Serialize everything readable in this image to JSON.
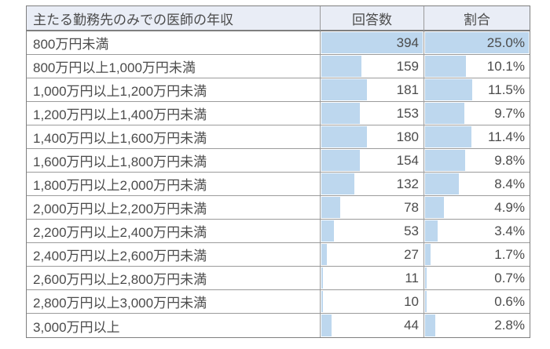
{
  "page": {
    "background": "#FFFFFF"
  },
  "table": {
    "headers": {
      "category": "主たる勤務先のみでの医師の年収",
      "count": "回答数",
      "percent": "割合"
    },
    "rows": [
      {
        "category": "800万円未満",
        "count": "394",
        "percent": "25.0%"
      },
      {
        "category": "800万円以上1,000万円未満",
        "count": "159",
        "percent": "10.1%"
      },
      {
        "category": "1,000万円以上1,200万円未満",
        "count": "181",
        "percent": "11.5%"
      },
      {
        "category": "1,200万円以上1,400万円未満",
        "count": "153",
        "percent": "9.7%"
      },
      {
        "category": "1,400万円以上1,600万円未満",
        "count": "180",
        "percent": "11.4%"
      },
      {
        "category": "1,600万円以上1,800万円未満",
        "count": "154",
        "percent": "9.8%"
      },
      {
        "category": "1,800万円以上2,000万円未満",
        "count": "132",
        "percent": "8.4%"
      },
      {
        "category": "2,000万円以上2,200万円未満",
        "count": "78",
        "percent": "4.9%"
      },
      {
        "category": "2,200万円以上2,400万円未満",
        "count": "53",
        "percent": "3.4%"
      },
      {
        "category": "2,400万円以上2,600万円未満",
        "count": "27",
        "percent": "1.7%"
      },
      {
        "category": "2,600万円以上2,800万円未満",
        "count": "11",
        "percent": "0.7%"
      },
      {
        "category": "2,800万円以上3,000万円未満",
        "count": "10",
        "percent": "0.6%"
      },
      {
        "category": "3,000万円以上",
        "count": "44",
        "percent": "2.8%"
      }
    ],
    "colors": {
      "bar": "#BDD7EE",
      "header_bg": "#E9EDF6",
      "grid_border": "#9B9B9B",
      "outer_border": "#7F7F7F",
      "text": "#4B4B4B"
    }
  },
  "chart_data": {
    "type": "table",
    "title": "主たる勤務先のみでの医師の年収",
    "columns": [
      "主たる勤務先のみでの医師の年収",
      "回答数",
      "割合"
    ],
    "categories": [
      "800万円未満",
      "800万円以上1,000万円未満",
      "1,000万円以上1,200万円未満",
      "1,200万円以上1,400万円未満",
      "1,400万円以上1,600万円未満",
      "1,600万円以上1,800万円未満",
      "1,800万円以上2,000万円未満",
      "2,000万円以上2,200万円未満",
      "2,200万円以上2,400万円未満",
      "2,400万円以上2,600万円未満",
      "2,600万円以上2,800万円未満",
      "2,800万円以上3,000万円未満",
      "3,000万円以上"
    ],
    "series": [
      {
        "name": "回答数",
        "values": [
          394,
          159,
          181,
          153,
          180,
          154,
          132,
          78,
          53,
          27,
          11,
          10,
          44
        ]
      },
      {
        "name": "割合",
        "unit": "%",
        "values": [
          25.0,
          10.1,
          11.5,
          9.7,
          11.4,
          9.8,
          8.4,
          4.9,
          3.4,
          1.7,
          0.7,
          0.6,
          2.8
        ]
      }
    ],
    "layout_hints": {
      "in_cell_data_bars": true,
      "bar_scale_max_count": 394,
      "bar_scale_max_percent": 25.0,
      "bar_color": "#BDD7EE"
    }
  }
}
